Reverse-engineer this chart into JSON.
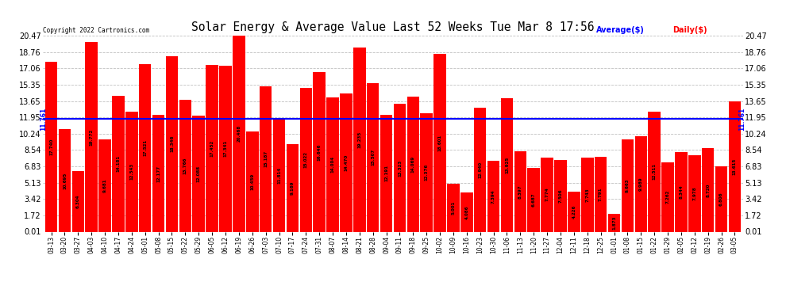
{
  "title": "Solar Energy & Average Value Last 52 Weeks Tue Mar 8 17:56",
  "copyright": "Copyright 2022 Cartronics.com",
  "legend_avg": "Average($)",
  "legend_daily": "Daily($)",
  "average_value": 11.761,
  "ylim_min": 0.01,
  "ylim_max": 20.47,
  "yticks": [
    0.01,
    1.72,
    3.42,
    5.13,
    6.83,
    8.54,
    10.24,
    11.95,
    13.65,
    15.35,
    17.06,
    18.76,
    20.47
  ],
  "bar_color": "#FF0000",
  "avg_line_color": "#0000FF",
  "avg_label_color": "#0000FF",
  "daily_label_color": "#FF0000",
  "title_color": "#000000",
  "bg_color": "#FFFFFF",
  "grid_color": "#C0C0C0",
  "categories": [
    "03-13",
    "03-20",
    "03-27",
    "04-03",
    "04-10",
    "04-17",
    "04-24",
    "05-01",
    "05-08",
    "05-15",
    "05-22",
    "05-29",
    "06-05",
    "06-12",
    "06-19",
    "06-26",
    "07-03",
    "07-10",
    "07-17",
    "07-24",
    "07-31",
    "08-07",
    "08-14",
    "08-21",
    "08-28",
    "09-04",
    "09-11",
    "09-18",
    "09-25",
    "10-02",
    "10-09",
    "10-16",
    "10-23",
    "10-30",
    "11-06",
    "11-13",
    "11-20",
    "11-27",
    "12-04",
    "12-11",
    "12-18",
    "12-25",
    "01-01",
    "01-08",
    "01-15",
    "01-22",
    "01-29",
    "02-05",
    "02-12",
    "02-19",
    "02-26",
    "03-05"
  ],
  "values": [
    17.74,
    10.695,
    6.304,
    19.772,
    9.681,
    14.181,
    12.543,
    17.521,
    12.177,
    18.346,
    13.766,
    12.088,
    17.452,
    17.341,
    20.468,
    10.459,
    15.187,
    11.814,
    9.169,
    15.022,
    16.646,
    14.004,
    14.47,
    19.235,
    15.507,
    12.191,
    13.323,
    14.069,
    12.376,
    18.601,
    5.001,
    4.086,
    12.94,
    7.394,
    13.925,
    8.397,
    6.687,
    7.774,
    7.506,
    4.226,
    7.743,
    7.791,
    1.873,
    9.663,
    9.989,
    12.511,
    7.262,
    8.344,
    7.978,
    8.72,
    6.806,
    13.615
  ]
}
